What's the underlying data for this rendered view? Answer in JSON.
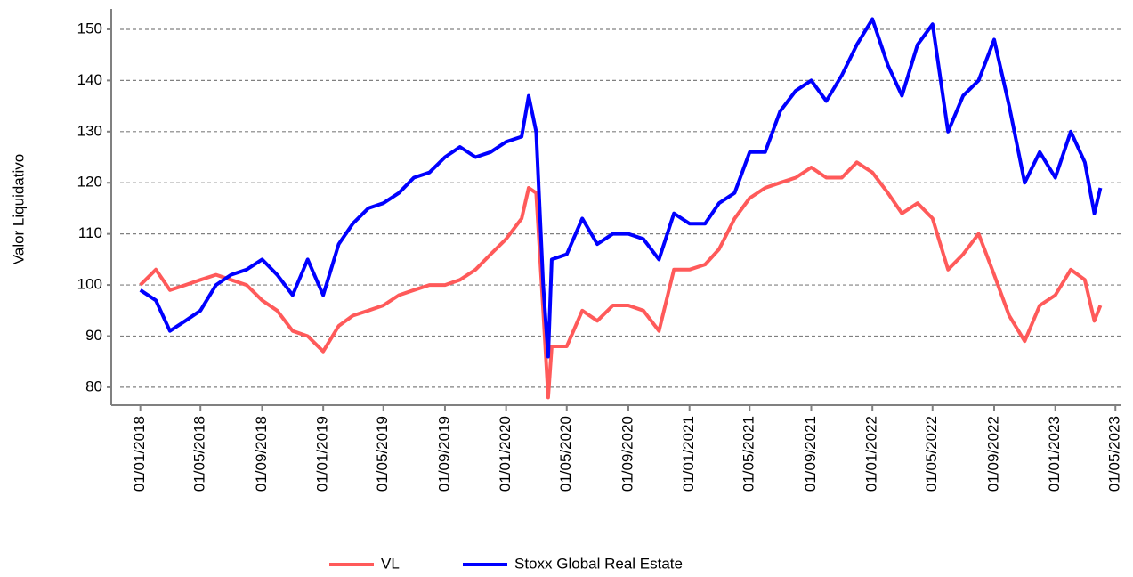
{
  "chart_data": {
    "type": "line",
    "y_label": "Valor Liquidativo",
    "x": [
      "01/01/2018",
      "01/02/2018",
      "01/03/2018",
      "01/04/2018",
      "01/05/2018",
      "01/06/2018",
      "01/07/2018",
      "01/08/2018",
      "01/09/2018",
      "01/10/2018",
      "01/11/2018",
      "01/12/2018",
      "01/01/2019",
      "01/02/2019",
      "01/03/2019",
      "01/04/2019",
      "01/05/2019",
      "01/06/2019",
      "01/07/2019",
      "01/08/2019",
      "01/09/2019",
      "01/10/2019",
      "01/11/2019",
      "01/12/2019",
      "01/01/2020",
      "01/02/2020",
      "15/02/2020",
      "01/03/2020",
      "15/03/2020",
      "25/03/2020",
      "01/04/2020",
      "01/05/2020",
      "01/06/2020",
      "01/07/2020",
      "01/08/2020",
      "01/09/2020",
      "01/10/2020",
      "01/11/2020",
      "01/12/2020",
      "01/01/2021",
      "01/02/2021",
      "01/03/2021",
      "01/04/2021",
      "01/05/2021",
      "01/06/2021",
      "01/07/2021",
      "01/08/2021",
      "01/09/2021",
      "01/10/2021",
      "01/11/2021",
      "01/12/2021",
      "01/01/2022",
      "01/02/2022",
      "01/03/2022",
      "01/04/2022",
      "01/05/2022",
      "01/06/2022",
      "01/07/2022",
      "01/08/2022",
      "01/09/2022",
      "01/10/2022",
      "01/11/2022",
      "01/12/2022",
      "01/01/2023",
      "01/02/2023",
      "01/03/2023",
      "20/03/2023",
      "01/04/2023"
    ],
    "series": [
      {
        "name": "VL",
        "color": "#ff5a5a",
        "values": [
          100,
          103,
          99,
          100,
          101,
          102,
          101,
          100,
          97,
          95,
          91,
          90,
          87,
          92,
          94,
          95,
          96,
          98,
          99,
          100,
          100,
          101,
          103,
          106,
          109,
          113,
          119,
          118,
          95,
          78,
          88,
          88,
          95,
          93,
          96,
          96,
          95,
          91,
          103,
          103,
          104,
          107,
          113,
          117,
          119,
          120,
          121,
          123,
          121,
          121,
          124,
          122,
          118,
          114,
          116,
          113,
          103,
          106,
          110,
          102,
          94,
          89,
          96,
          98,
          103,
          101,
          93,
          96
        ]
      },
      {
        "name": "Stoxx Global Real Estate",
        "color": "#0000ff",
        "values": [
          99,
          97,
          91,
          93,
          95,
          100,
          102,
          103,
          105,
          102,
          98,
          105,
          98,
          108,
          112,
          115,
          116,
          118,
          121,
          122,
          125,
          127,
          125,
          126,
          128,
          129,
          137,
          130,
          100,
          86,
          105,
          106,
          113,
          108,
          110,
          110,
          109,
          105,
          114,
          112,
          112,
          116,
          118,
          126,
          126,
          134,
          138,
          140,
          136,
          141,
          147,
          152,
          143,
          137,
          147,
          151,
          130,
          137,
          140,
          148,
          135,
          120,
          126,
          121,
          130,
          124,
          114,
          119
        ]
      }
    ],
    "xlim": [
      "04/11/2017",
      "13/05/2023"
    ],
    "xticks": [
      "01/01/2018",
      "01/05/2018",
      "01/09/2018",
      "01/01/2019",
      "01/05/2019",
      "01/09/2019",
      "01/01/2020",
      "01/05/2020",
      "01/09/2020",
      "01/01/2021",
      "01/05/2021",
      "01/09/2021",
      "01/01/2022",
      "01/05/2022",
      "01/09/2022",
      "01/01/2023",
      "01/05/2023"
    ],
    "ylim": [
      76.5,
      154
    ],
    "yticks": [
      80,
      90,
      100,
      110,
      120,
      130,
      140,
      150
    ],
    "grid": true,
    "legend": "bottom"
  }
}
